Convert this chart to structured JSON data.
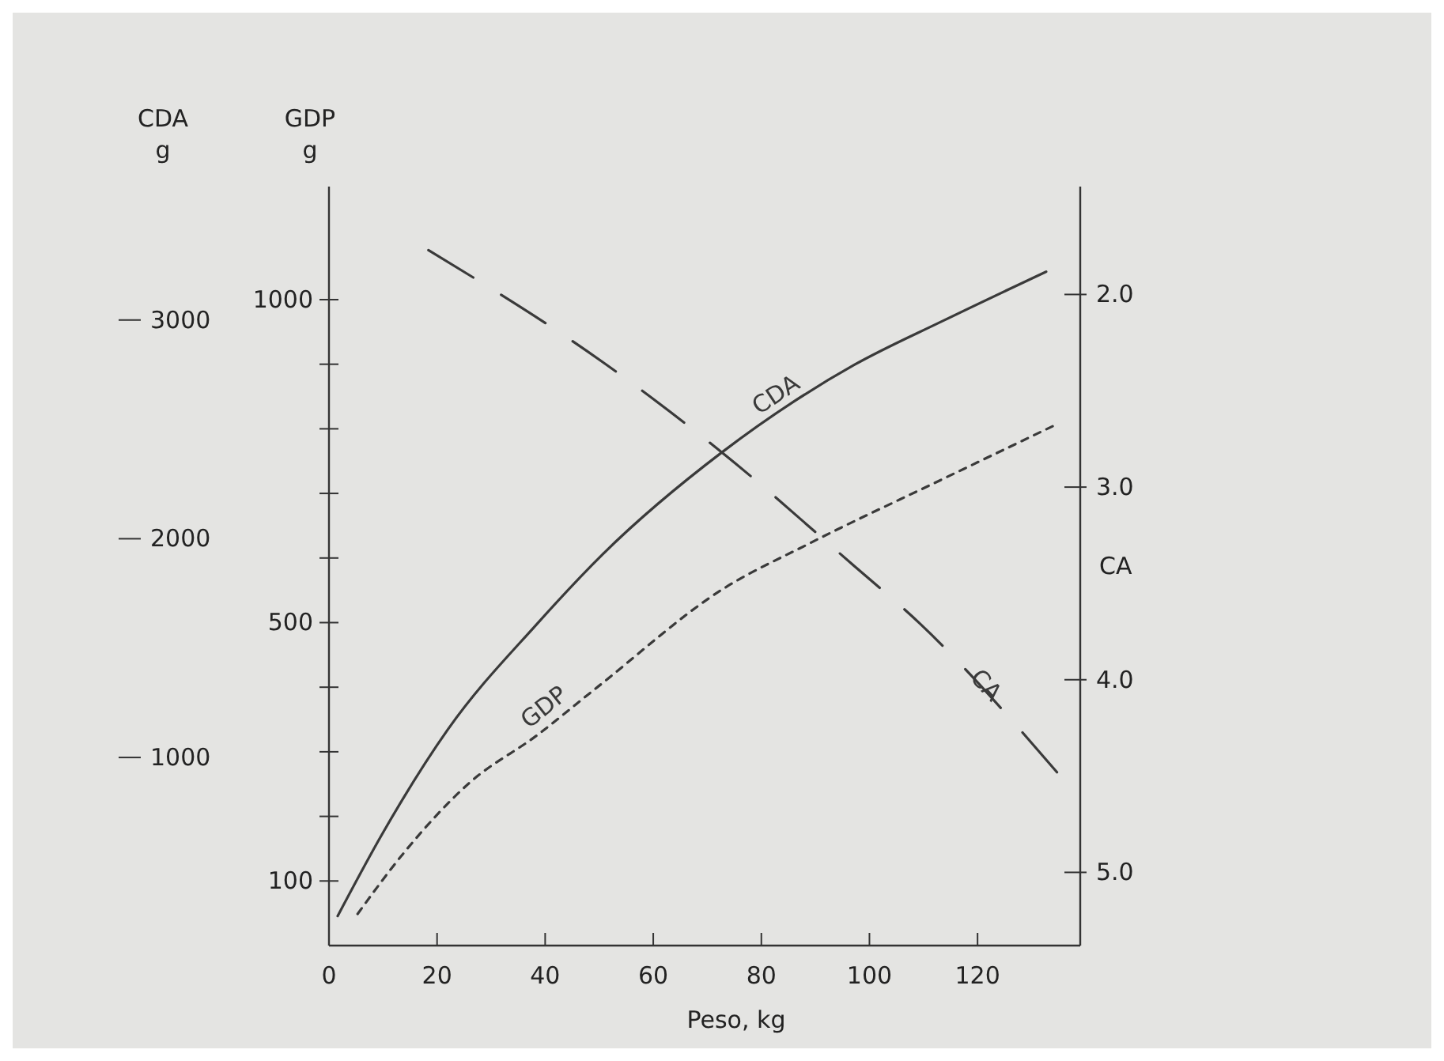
{
  "chart_data": {
    "type": "line",
    "xlabel": "Peso, kg",
    "ylabel": "GDP\ng",
    "y2label": "CA",
    "y3label": "CDA\ng",
    "xlim": [
      0,
      139
    ],
    "xticks": [
      0,
      20,
      40,
      60,
      80,
      100,
      120
    ],
    "ylim": [
      0,
      1175
    ],
    "yticks": [
      {
        "value": 100,
        "label": "100"
      },
      {
        "value": 200,
        "label": null
      },
      {
        "value": 300,
        "label": null
      },
      {
        "value": 400,
        "label": null
      },
      {
        "value": 500,
        "label": "500"
      },
      {
        "value": 600,
        "label": null
      },
      {
        "value": 700,
        "label": null
      },
      {
        "value": 800,
        "label": null
      },
      {
        "value": 900,
        "label": null
      },
      {
        "value": 1000,
        "label": "1000"
      }
    ],
    "y2lim": [
      5.38,
      1.44
    ],
    "y2ticks": [
      {
        "value": 2,
        "label": "2.0"
      },
      {
        "value": 3,
        "label": "3.0"
      },
      {
        "value": 4,
        "label": "4.0"
      },
      {
        "value": 5,
        "label": "5.0"
      }
    ],
    "y3lim": [
      140,
      3610
    ],
    "y3ticks": [
      1000,
      2000,
      3000
    ],
    "grid": false,
    "marker": "none",
    "series": [
      {
        "name": "CDA",
        "color": "#3a3a3a",
        "axis": "y3",
        "line_style": "solid",
        "x": [
          1.6,
          9.8,
          22,
          38.4,
          50.6,
          72.7,
          97.2,
          113.5,
          132.7
        ],
        "values": [
          275,
          648,
          1128,
          1608,
          1928,
          2395,
          2795,
          2995,
          3221
        ]
      },
      {
        "name": "GDP",
        "color": "#3a3a3a",
        "axis": "y",
        "line_style": "dotted",
        "x": [
          5.3,
          13.9,
          26,
          38.4,
          49.8,
          72.7,
          89,
          113.5,
          133.9
        ],
        "values": [
          49,
          144,
          252,
          325,
          401,
          551,
          623,
          722,
          804
        ]
      },
      {
        "name": "CA",
        "color": "#3a3a3a",
        "axis": "y2",
        "line_style": "dashed",
        "x": [
          18.4,
          50.6,
          72.7,
          97.2,
          109.4,
          134.7
        ],
        "values": [
          1.77,
          2.35,
          2.82,
          3.41,
          3.71,
          4.48
        ]
      }
    ]
  }
}
